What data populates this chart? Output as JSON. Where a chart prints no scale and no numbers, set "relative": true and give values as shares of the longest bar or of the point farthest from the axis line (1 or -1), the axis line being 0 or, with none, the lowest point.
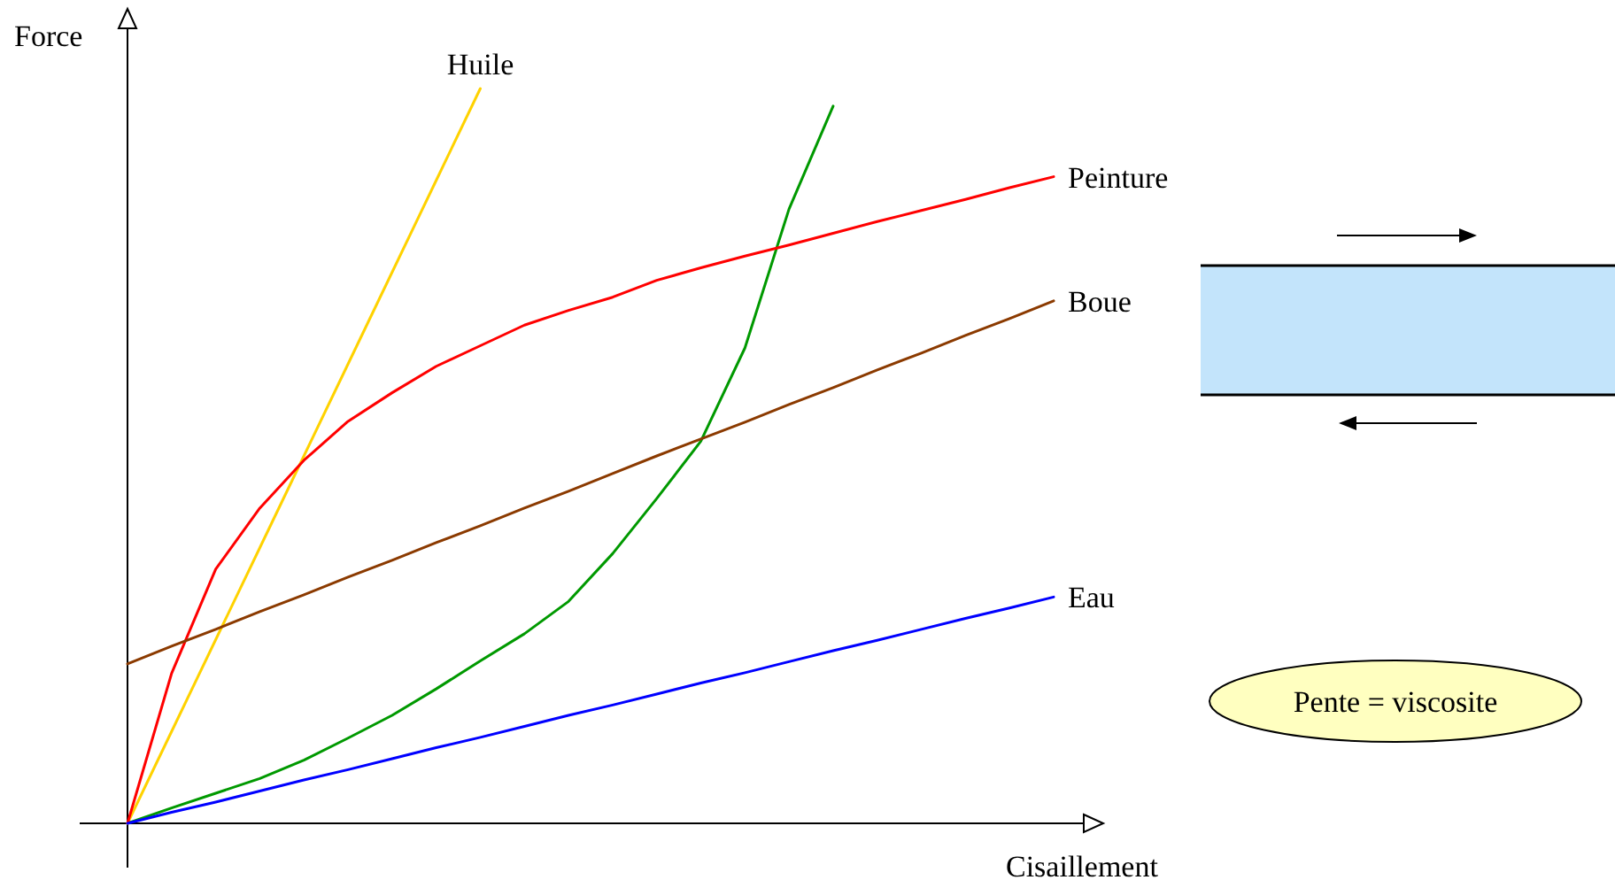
{
  "chart_data": {
    "type": "line",
    "relative": true,
    "xlabel": "Cisaillement",
    "ylabel": "Force",
    "annotations": [
      "Pente = viscosite"
    ],
    "categories": [
      null,
      null,
      null,
      null,
      null,
      null,
      null,
      null,
      null,
      null,
      null,
      null,
      null,
      null,
      null,
      null,
      null,
      null,
      null,
      null,
      null,
      null
    ],
    "series": [
      {
        "name": "Huile",
        "color": "#ffd200",
        "values": [
          0,
          0.125,
          0.25,
          0.375,
          0.5,
          0.625,
          0.75,
          0.875,
          1,
          null,
          null,
          null,
          null,
          null,
          null,
          null,
          null,
          null,
          null,
          null,
          null,
          null
        ]
      },
      {
        "color": "#009900",
        "values": [
          0,
          0.021,
          0.041,
          0.061,
          0.086,
          0.116,
          0.147,
          0.183,
          0.221,
          0.258,
          0.302,
          0.367,
          0.442,
          0.52,
          0.647,
          0.836,
          0.976,
          null,
          null,
          null,
          null,
          null
        ]
      },
      {
        "name": "Peinture",
        "color": "#ff0000",
        "values": [
          0,
          0.204,
          0.346,
          0.429,
          0.494,
          0.547,
          0.586,
          0.622,
          0.65,
          0.678,
          0.698,
          0.716,
          0.739,
          0.756,
          0.772,
          0.787,
          0.803,
          0.819,
          0.834,
          0.849,
          0.865,
          0.88
        ]
      },
      {
        "name": "Boue",
        "color": "#8b3a00",
        "values": [
          0.217,
          0.241,
          0.264,
          0.288,
          0.311,
          0.335,
          0.358,
          0.382,
          0.405,
          0.429,
          0.452,
          0.476,
          0.5,
          0.523,
          0.546,
          0.57,
          0.593,
          0.617,
          0.64,
          0.664,
          0.687,
          0.711
        ]
      },
      {
        "name": "Eau",
        "color": "#0000ff",
        "values": [
          0,
          0.015,
          0.029,
          0.044,
          0.059,
          0.073,
          0.088,
          0.103,
          0.117,
          0.132,
          0.147,
          0.161,
          0.176,
          0.191,
          0.205,
          0.22,
          0.235,
          0.249,
          0.264,
          0.279,
          0.293,
          0.308
        ]
      }
    ]
  }
}
